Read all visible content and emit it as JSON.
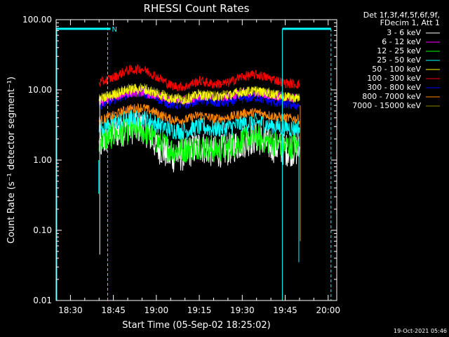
{
  "chart_data": {
    "type": "line",
    "title": "RHESSI Count Rates",
    "xlabel": "Start Time (05-Sep-02 18:25:02)",
    "ylabel": "Count Rate (s⁻¹ detector segment⁻¹)",
    "yscale": "log",
    "ylim": [
      0.01,
      100
    ],
    "xlim": [
      "18:25",
      "20:03"
    ],
    "x_ticks": [
      "18:30",
      "18:45",
      "19:00",
      "19:15",
      "19:30",
      "19:45",
      "20:00"
    ],
    "y_ticks": [
      "0.01",
      "0.10",
      "1.00",
      "10.00",
      "100.00"
    ],
    "grid": false,
    "legend_position": "outside-right",
    "legend_header": [
      "Det 1f,3f,4f,5f,6f,9f,",
      "FDecim 1, Att 1"
    ],
    "annotation": "N",
    "timestamp": "19-Oct-2021 05:46",
    "data_start": "18:40",
    "data_end": "19:50",
    "x_profile": [
      "18:40",
      "18:45",
      "18:50",
      "18:55",
      "19:00",
      "19:05",
      "19:10",
      "19:15",
      "19:20",
      "19:25",
      "19:30",
      "19:35",
      "19:40",
      "19:45",
      "19:50"
    ],
    "series": [
      {
        "name": "3 - 6 keV",
        "color": "#ffffff",
        "values": [
          1.6,
          2.4,
          2.8,
          3.0,
          1.6,
          1.1,
          1.2,
          1.6,
          1.3,
          1.4,
          1.8,
          2.1,
          1.6,
          1.4,
          1.4
        ]
      },
      {
        "name": "6 - 12 keV",
        "color": "#ff00ff",
        "values": [
          6.5,
          8.0,
          9.0,
          9.3,
          8.2,
          7.2,
          7.1,
          8.2,
          7.8,
          8.1,
          8.9,
          9.2,
          8.5,
          7.8,
          7.6
        ]
      },
      {
        "name": "12 - 25 keV",
        "color": "#00ff00",
        "values": [
          1.8,
          2.3,
          2.6,
          2.7,
          1.9,
          1.4,
          1.4,
          1.6,
          1.4,
          1.5,
          1.9,
          2.1,
          1.8,
          1.6,
          1.6
        ]
      },
      {
        "name": "25 - 50 keV",
        "color": "#00ffff",
        "values": [
          2.9,
          3.4,
          3.9,
          4.1,
          3.3,
          2.7,
          2.6,
          3.0,
          2.8,
          2.9,
          3.3,
          3.5,
          3.1,
          2.9,
          2.8
        ]
      },
      {
        "name": "50 - 100 keV",
        "color": "#ffff00",
        "values": [
          7.0,
          8.5,
          10.0,
          10.3,
          8.8,
          7.5,
          7.2,
          8.5,
          8.0,
          8.3,
          9.3,
          9.6,
          8.8,
          7.9,
          7.6
        ]
      },
      {
        "name": "100 - 300 keV",
        "color": "#ff0000",
        "values": [
          12.5,
          15.0,
          19.0,
          20.0,
          15.5,
          11.5,
          11.0,
          13.5,
          12.0,
          12.5,
          15.5,
          16.5,
          14.5,
          12.5,
          12.0
        ]
      },
      {
        "name": "300 - 800 keV",
        "color": "#0000ff",
        "values": [
          6.0,
          7.2,
          8.8,
          9.2,
          7.6,
          6.2,
          6.0,
          7.3,
          6.5,
          6.6,
          7.5,
          7.8,
          6.8,
          6.2,
          6.0
        ]
      },
      {
        "name": "800 - 7000 keV",
        "color": "#ff8800",
        "values": [
          3.6,
          4.3,
          5.3,
          5.6,
          4.7,
          3.8,
          3.7,
          4.4,
          3.9,
          4.0,
          4.6,
          4.8,
          4.3,
          4.0,
          3.8
        ]
      },
      {
        "name": "7000 - 15000 keV",
        "color": "#888800",
        "values": [
          7.5,
          9.0,
          10.5,
          10.8,
          9.2,
          7.8,
          7.5,
          8.8,
          8.2,
          8.5,
          9.5,
          9.8,
          9.0,
          8.0,
          7.8
        ]
      }
    ]
  }
}
